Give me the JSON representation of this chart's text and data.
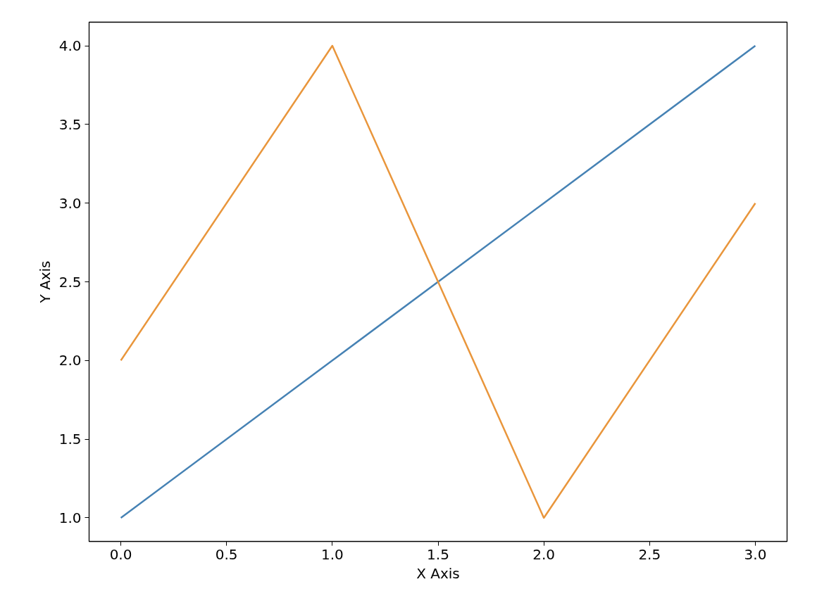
{
  "chart_data": {
    "type": "line",
    "xlabel": "X Axis",
    "ylabel": "Y Axis",
    "x": [
      0,
      1,
      2,
      3
    ],
    "series": [
      {
        "color": "#4682b4",
        "values": [
          1,
          2,
          3,
          4
        ]
      },
      {
        "color": "#e9963c",
        "values": [
          2,
          4,
          1,
          3
        ]
      }
    ],
    "xlim": [
      -0.15,
      3.15
    ],
    "ylim": [
      0.85,
      4.15
    ],
    "xticks": [
      {
        "value": 0,
        "label": "0.0"
      },
      {
        "value": 0.5,
        "label": "0.5"
      },
      {
        "value": 1,
        "label": "1.0"
      },
      {
        "value": 1.5,
        "label": "1.5"
      },
      {
        "value": 2,
        "label": "2.0"
      },
      {
        "value": 2.5,
        "label": "2.5"
      },
      {
        "value": 3,
        "label": "3.0"
      }
    ],
    "yticks": [
      {
        "value": 1,
        "label": "1.0"
      },
      {
        "value": 1.5,
        "label": "1.5"
      },
      {
        "value": 2,
        "label": "2.0"
      },
      {
        "value": 2.5,
        "label": "2.5"
      },
      {
        "value": 3,
        "label": "3.0"
      },
      {
        "value": 3.5,
        "label": "3.5"
      },
      {
        "value": 4,
        "label": "4.0"
      }
    ],
    "grid": false
  }
}
